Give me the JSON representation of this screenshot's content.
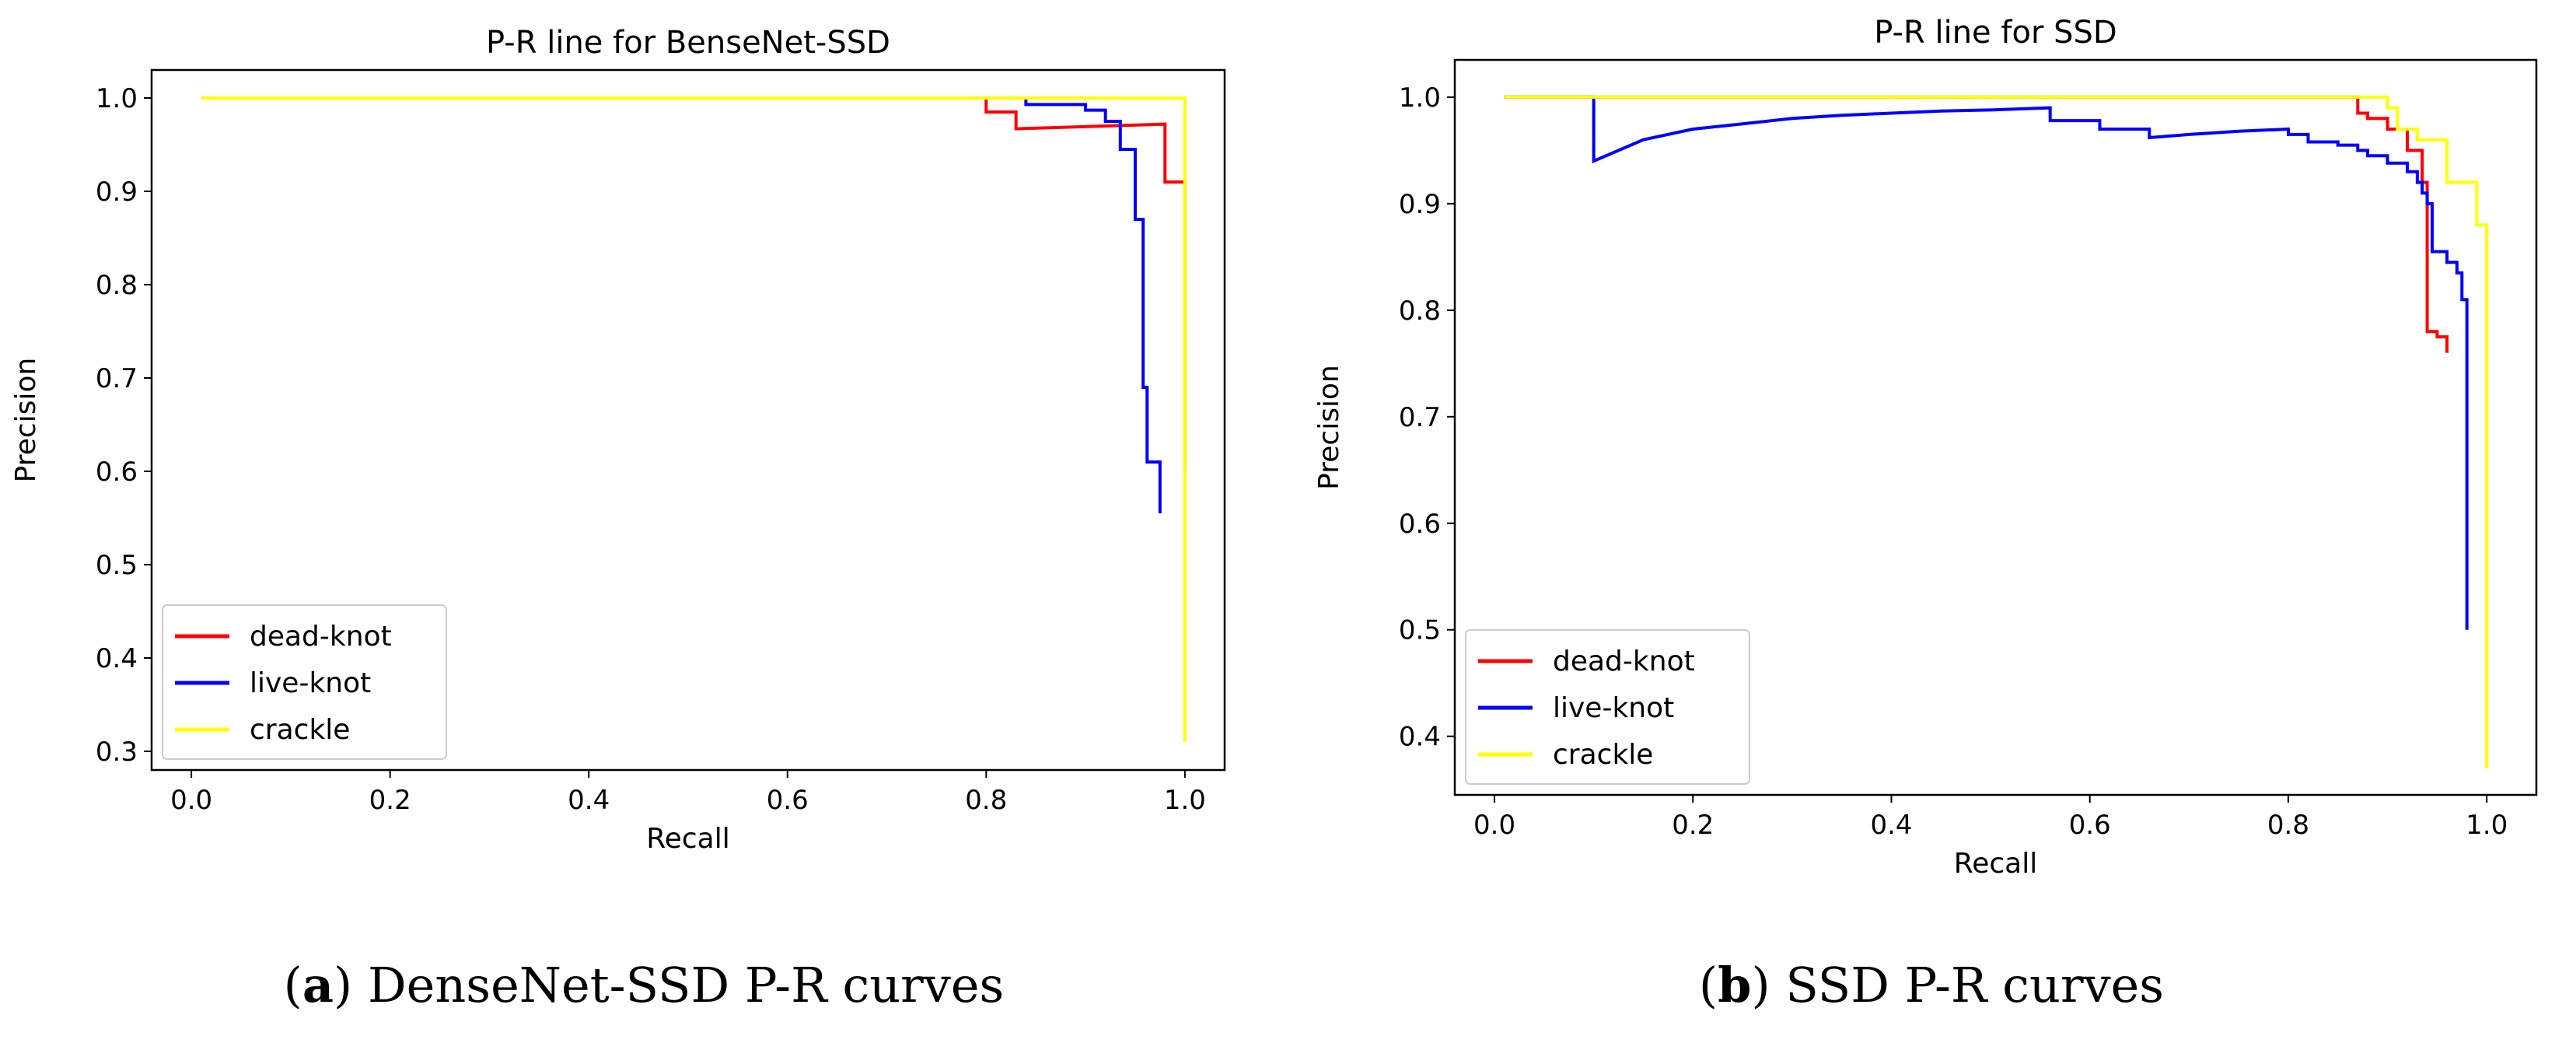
{
  "chart_data": [
    {
      "type": "line",
      "title": "P-R line for BenseNet-SSD",
      "xlabel": "Recall",
      "ylabel": "Precision",
      "xlim": [
        -0.04,
        1.04
      ],
      "ylim": [
        0.28,
        1.03
      ],
      "xticks": [
        "0.0",
        "0.2",
        "0.4",
        "0.6",
        "0.8",
        "1.0"
      ],
      "yticks": [
        "0.3",
        "0.4",
        "0.5",
        "0.6",
        "0.7",
        "0.8",
        "0.9",
        "1.0"
      ],
      "legend_position": "lower-left",
      "series": [
        {
          "name": "dead-knot",
          "color": "#ff0000",
          "x": [
            0.01,
            0.8,
            0.8,
            0.83,
            0.83,
            0.98,
            0.98,
            1.0,
            1.0
          ],
          "y": [
            1.0,
            1.0,
            0.985,
            0.985,
            0.967,
            0.972,
            0.91,
            0.91,
            0.6
          ]
        },
        {
          "name": "live-knot",
          "color": "#0000ff",
          "x": [
            0.01,
            0.84,
            0.84,
            0.9,
            0.9,
            0.92,
            0.92,
            0.935,
            0.935,
            0.95,
            0.95,
            0.958,
            0.958,
            0.962,
            0.962,
            0.968,
            0.968,
            0.975,
            0.975
          ],
          "y": [
            1.0,
            1.0,
            0.993,
            0.993,
            0.987,
            0.987,
            0.975,
            0.975,
            0.945,
            0.945,
            0.87,
            0.87,
            0.69,
            0.69,
            0.61,
            0.61,
            0.61,
            0.61,
            0.555
          ]
        },
        {
          "name": "crackle",
          "color": "#ffff00",
          "x": [
            0.01,
            1.0,
            1.0
          ],
          "y": [
            1.0,
            1.0,
            0.31
          ]
        }
      ]
    },
    {
      "type": "line",
      "title": "P-R line for SSD",
      "xlabel": "Recall",
      "ylabel": "Precision",
      "xlim": [
        -0.04,
        1.05
      ],
      "ylim": [
        0.345,
        1.035
      ],
      "xticks": [
        "0.0",
        "0.2",
        "0.4",
        "0.6",
        "0.8",
        "1.0"
      ],
      "yticks": [
        "0.4",
        "0.5",
        "0.6",
        "0.7",
        "0.8",
        "0.9",
        "1.0"
      ],
      "legend_position": "lower-left",
      "series": [
        {
          "name": "dead-knot",
          "color": "#ff0000",
          "x": [
            0.01,
            0.87,
            0.87,
            0.88,
            0.88,
            0.9,
            0.9,
            0.92,
            0.92,
            0.935,
            0.935,
            0.94,
            0.94,
            0.95,
            0.95,
            0.96,
            0.96
          ],
          "y": [
            1.0,
            1.0,
            0.985,
            0.985,
            0.98,
            0.98,
            0.97,
            0.97,
            0.95,
            0.95,
            0.92,
            0.92,
            0.78,
            0.78,
            0.775,
            0.775,
            0.76
          ]
        },
        {
          "name": "live-knot",
          "color": "#0000ff",
          "x": [
            0.01,
            0.1,
            0.1,
            0.15,
            0.2,
            0.25,
            0.3,
            0.35,
            0.4,
            0.45,
            0.5,
            0.56,
            0.56,
            0.61,
            0.61,
            0.66,
            0.66,
            0.7,
            0.75,
            0.8,
            0.8,
            0.82,
            0.82,
            0.85,
            0.85,
            0.87,
            0.87,
            0.88,
            0.88,
            0.9,
            0.9,
            0.92,
            0.92,
            0.93,
            0.93,
            0.935,
            0.935,
            0.94,
            0.94,
            0.945,
            0.945,
            0.96,
            0.96,
            0.97,
            0.97,
            0.975,
            0.975,
            0.98,
            0.98
          ],
          "y": [
            1.0,
            1.0,
            0.94,
            0.96,
            0.97,
            0.975,
            0.98,
            0.983,
            0.985,
            0.987,
            0.988,
            0.99,
            0.978,
            0.978,
            0.97,
            0.97,
            0.962,
            0.965,
            0.968,
            0.97,
            0.965,
            0.965,
            0.958,
            0.958,
            0.955,
            0.955,
            0.95,
            0.95,
            0.945,
            0.945,
            0.938,
            0.938,
            0.93,
            0.93,
            0.92,
            0.92,
            0.91,
            0.91,
            0.9,
            0.9,
            0.855,
            0.855,
            0.845,
            0.845,
            0.835,
            0.835,
            0.81,
            0.81,
            0.5
          ]
        },
        {
          "name": "crackle",
          "color": "#ffff00",
          "x": [
            0.01,
            0.9,
            0.9,
            0.91,
            0.91,
            0.93,
            0.93,
            0.96,
            0.96,
            0.98,
            0.98,
            0.99,
            0.99,
            1.0,
            1.0
          ],
          "y": [
            1.0,
            1.0,
            0.99,
            0.99,
            0.97,
            0.97,
            0.96,
            0.96,
            0.92,
            0.92,
            0.92,
            0.92,
            0.88,
            0.88,
            0.37
          ]
        }
      ]
    }
  ],
  "captions": [
    {
      "letter": "a",
      "text": "DenseNet-SSD P-R curves"
    },
    {
      "letter": "b",
      "text": "SSD P-R curves"
    }
  ]
}
